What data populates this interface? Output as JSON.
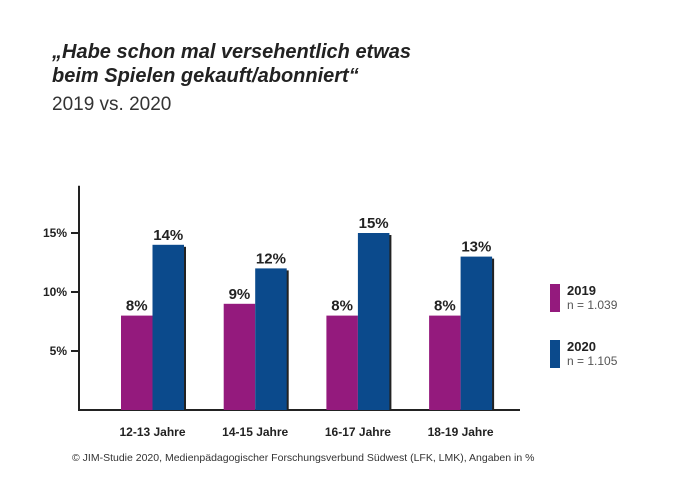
{
  "title_line1": "„Habe schon mal versehentlich etwas",
  "title_line2": "beim Spielen gekauft/abonniert“",
  "subtitle": "2019 vs. 2020",
  "footer": "© JIM-Studie 2020, Medienpädagogischer Forschungsverbund Südwest (LFK, LMK), Angaben in %",
  "chart_data": {
    "type": "bar",
    "categories": [
      "12-13 Jahre",
      "14-15 Jahre",
      "16-17 Jahre",
      "18-19 Jahre"
    ],
    "series": [
      {
        "name": "2019",
        "note": "n = 1.039",
        "values": [
          8,
          9,
          8,
          8
        ],
        "labels": [
          "8%",
          "9%",
          "8%",
          "8%"
        ],
        "color": "#941a7d"
      },
      {
        "name": "2020",
        "note": "n = 1.105",
        "values": [
          14,
          12,
          15,
          13
        ],
        "labels": [
          "14%",
          "12%",
          "15%",
          "13%"
        ],
        "color": "#0b4a8c"
      }
    ],
    "yticks": [
      5,
      10,
      15
    ],
    "ytick_labels": [
      "5%",
      "10%",
      "15%"
    ],
    "ylim": [
      0,
      19
    ],
    "grid": false,
    "legend": "right"
  }
}
